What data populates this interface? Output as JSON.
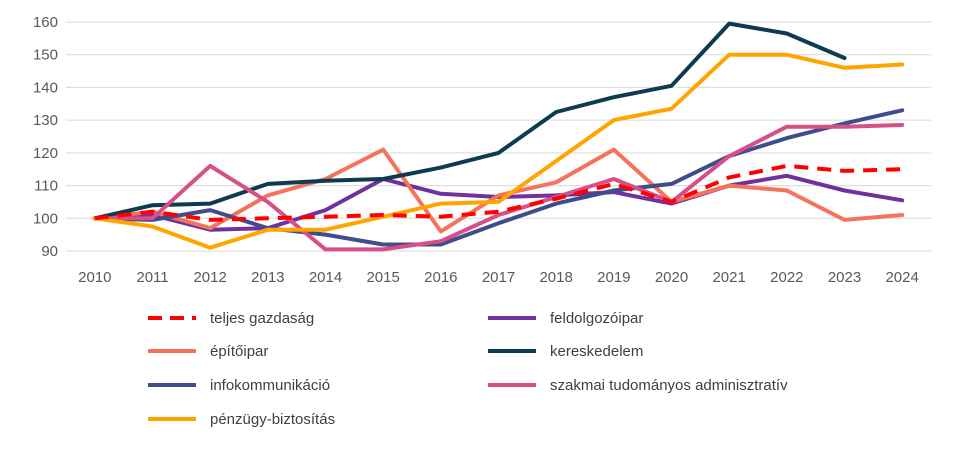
{
  "chart_data": {
    "type": "line",
    "x": [
      "2010",
      "2011",
      "2012",
      "2013",
      "2014",
      "2015",
      "2016",
      "2017",
      "2018",
      "2019",
      "2020",
      "2021",
      "2022",
      "2023",
      "2024"
    ],
    "ylim": [
      90,
      160
    ],
    "yticks": [
      90,
      100,
      110,
      120,
      130,
      140,
      150,
      160
    ],
    "grid": true,
    "legend_position": "bottom",
    "series": [
      {
        "name": "teljes gazdaság",
        "color": "#ff0000",
        "dashed": true,
        "values": [
          100,
          102,
          99.5,
          100,
          100.5,
          101,
          100.5,
          102,
          106,
          110.5,
          105,
          112.5,
          116,
          114.5,
          115
        ]
      },
      {
        "name": "feldolgozóipar",
        "color": "#7030a0",
        "dashed": false,
        "values": [
          100,
          101,
          96.5,
          97,
          102.5,
          112,
          107.5,
          106.5,
          107,
          108,
          104.5,
          110,
          113,
          108.5,
          105.5
        ]
      },
      {
        "name": "építőipar",
        "color": "#f4735a",
        "dashed": false,
        "values": [
          100,
          102,
          97,
          107,
          112,
          121,
          96,
          107,
          111,
          121,
          105,
          110,
          108.5,
          99.5,
          101
        ]
      },
      {
        "name": "kereskedelem",
        "color": "#0d3b4f",
        "dashed": false,
        "values": [
          100,
          104,
          104.5,
          110.5,
          111.5,
          112,
          115.5,
          120,
          132.5,
          137,
          140.5,
          159.5,
          156.5,
          149,
          null
        ]
      },
      {
        "name": "infokommunikáció",
        "color": "#404c8c",
        "dashed": false,
        "values": [
          100,
          99.5,
          102.5,
          97,
          95,
          92,
          92,
          98.5,
          104.5,
          108.5,
          110.5,
          119,
          124.5,
          129,
          133
        ]
      },
      {
        "name": "szakmai tudományos adminisztratív",
        "color": "#d64f86",
        "dashed": false,
        "values": [
          100,
          100,
          116,
          105,
          90.5,
          90.5,
          93,
          101,
          106.5,
          112,
          105,
          119,
          128,
          128,
          128.5
        ]
      },
      {
        "name": "pénzügy-biztosítás",
        "color": "#ffa500",
        "dashed": false,
        "values": [
          100,
          97.5,
          91,
          96.5,
          96.5,
          100.5,
          104.5,
          105,
          117.5,
          130,
          133.5,
          150,
          150,
          146,
          147
        ]
      }
    ]
  }
}
